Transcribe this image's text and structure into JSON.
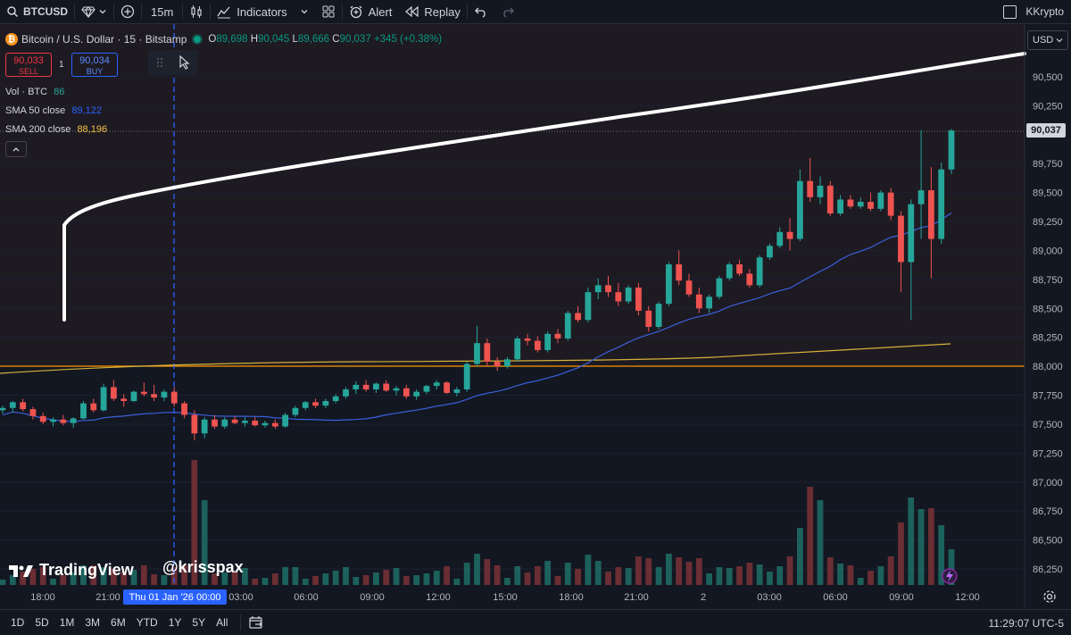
{
  "toolbar": {
    "symbol": "BTCUSD",
    "interval": "15m",
    "indicators_label": "Indicators",
    "alert_label": "Alert",
    "replay_label": "Replay",
    "user": "KKrypto"
  },
  "legend": {
    "title": "Bitcoin / U.S. Dollar · 15 · Bitstamp",
    "o_label": "O",
    "o": "89,698",
    "h_label": "H",
    "h": "90,045",
    "l_label": "L",
    "l": "89,666",
    "c_label": "C",
    "c": "90,037",
    "change": "+345 (+0.38%)"
  },
  "trade": {
    "sell_price": "90,033",
    "sell_label": "SELL",
    "spread": "1",
    "buy_price": "90,034",
    "buy_label": "BUY"
  },
  "studies": {
    "vol_label": "Vol · BTC",
    "vol_value": "86",
    "sma50_label": "SMA 50 close",
    "sma50_value": "89,122",
    "sma200_label": "SMA 200 close",
    "sma200_value": "88,196"
  },
  "price_axis": {
    "currency": "USD",
    "current_price": "90,037",
    "ticks": [
      "90,500",
      "90,250",
      "90,037",
      "89,750",
      "89,500",
      "89,250",
      "89,000",
      "88,750",
      "88,500",
      "88,250",
      "88,000",
      "87,750",
      "87,500",
      "87,250",
      "87,000",
      "86,750",
      "86,500",
      "86,250"
    ]
  },
  "time_axis": {
    "highlighted": "Thu 01 Jan '26   00:00",
    "labels": [
      "18:00",
      "21:00",
      "03:00",
      "06:00",
      "09:00",
      "12:00",
      "15:00",
      "18:00",
      "21:00",
      "2",
      "03:00",
      "06:00",
      "09:00",
      "12:00"
    ]
  },
  "branding": {
    "logo_text": "TradingView",
    "watermark": "@krisspax"
  },
  "bottom": {
    "ranges": [
      "1D",
      "5D",
      "1M",
      "3M",
      "6M",
      "YTD",
      "1Y",
      "5Y",
      "All"
    ],
    "clock": "11:29:07 UTC-5"
  },
  "colors": {
    "up": "#26a69a",
    "down": "#ef5350",
    "sma50": "#2962ff",
    "sma200": "#f5c242",
    "hline": "#ff9800",
    "background": "#131722"
  },
  "chart_data": {
    "type": "candlestick",
    "interval": "15m",
    "ylim": [
      86150,
      90700
    ],
    "horizontal_line": 88000,
    "candles": [
      [
        87620,
        87660,
        87590,
        87640
      ],
      [
        87640,
        87700,
        87600,
        87690
      ],
      [
        87690,
        87720,
        87610,
        87630
      ],
      [
        87630,
        87650,
        87540,
        87570
      ],
      [
        87570,
        87600,
        87500,
        87520
      ],
      [
        87520,
        87560,
        87480,
        87540
      ],
      [
        87540,
        87580,
        87490,
        87510
      ],
      [
        87510,
        87560,
        87470,
        87550
      ],
      [
        87550,
        87700,
        87540,
        87680
      ],
      [
        87680,
        87720,
        87600,
        87620
      ],
      [
        87620,
        87850,
        87610,
        87820
      ],
      [
        87820,
        87880,
        87700,
        87720
      ],
      [
        87720,
        87760,
        87650,
        87700
      ],
      [
        87700,
        87790,
        87690,
        87780
      ],
      [
        87780,
        87860,
        87740,
        87760
      ],
      [
        87760,
        87840,
        87700,
        87730
      ],
      [
        87730,
        87800,
        87700,
        87780
      ],
      [
        87780,
        87820,
        87650,
        87680
      ],
      [
        87680,
        87700,
        87550,
        87580
      ],
      [
        87580,
        87620,
        87360,
        87420
      ],
      [
        87420,
        87560,
        87380,
        87540
      ],
      [
        87540,
        87580,
        87460,
        87480
      ],
      [
        87480,
        87560,
        87460,
        87540
      ],
      [
        87540,
        87570,
        87500,
        87510
      ],
      [
        87510,
        87560,
        87480,
        87530
      ],
      [
        87530,
        87560,
        87480,
        87490
      ],
      [
        87490,
        87530,
        87470,
        87510
      ],
      [
        87510,
        87540,
        87460,
        87480
      ],
      [
        87480,
        87600,
        87470,
        87580
      ],
      [
        87580,
        87660,
        87560,
        87640
      ],
      [
        87640,
        87700,
        87620,
        87690
      ],
      [
        87690,
        87720,
        87640,
        87660
      ],
      [
        87660,
        87720,
        87640,
        87700
      ],
      [
        87700,
        87760,
        87680,
        87740
      ],
      [
        87740,
        87820,
        87720,
        87800
      ],
      [
        87800,
        87870,
        87760,
        87840
      ],
      [
        87840,
        87880,
        87780,
        87800
      ],
      [
        87800,
        87860,
        87770,
        87850
      ],
      [
        87850,
        87880,
        87780,
        87790
      ],
      [
        87790,
        87830,
        87750,
        87810
      ],
      [
        87810,
        87840,
        87720,
        87740
      ],
      [
        87740,
        87800,
        87710,
        87780
      ],
      [
        87780,
        87840,
        87760,
        87830
      ],
      [
        87830,
        87880,
        87800,
        87860
      ],
      [
        87860,
        87870,
        87760,
        87770
      ],
      [
        87770,
        87820,
        87740,
        87800
      ],
      [
        87800,
        88040,
        87780,
        88020
      ],
      [
        88020,
        88350,
        88000,
        88200
      ],
      [
        88200,
        88240,
        88000,
        88040
      ],
      [
        88040,
        88080,
        87960,
        88000
      ],
      [
        88000,
        88080,
        87980,
        88060
      ],
      [
        88060,
        88260,
        88040,
        88240
      ],
      [
        88240,
        88280,
        88180,
        88220
      ],
      [
        88220,
        88260,
        88120,
        88140
      ],
      [
        88140,
        88300,
        88120,
        88280
      ],
      [
        88280,
        88320,
        88200,
        88240
      ],
      [
        88240,
        88480,
        88220,
        88460
      ],
      [
        88460,
        88520,
        88380,
        88400
      ],
      [
        88400,
        88680,
        88380,
        88640
      ],
      [
        88640,
        88760,
        88580,
        88700
      ],
      [
        88700,
        88780,
        88600,
        88640
      ],
      [
        88640,
        88720,
        88520,
        88560
      ],
      [
        88560,
        88700,
        88540,
        88680
      ],
      [
        88680,
        88720,
        88440,
        88480
      ],
      [
        88480,
        88520,
        88300,
        88340
      ],
      [
        88340,
        88560,
        88320,
        88540
      ],
      [
        88540,
        88900,
        88520,
        88880
      ],
      [
        88880,
        89000,
        88700,
        88740
      ],
      [
        88740,
        88800,
        88600,
        88620
      ],
      [
        88620,
        88680,
        88460,
        88500
      ],
      [
        88500,
        88620,
        88460,
        88600
      ],
      [
        88600,
        88780,
        88580,
        88760
      ],
      [
        88760,
        88900,
        88740,
        88880
      ],
      [
        88880,
        88920,
        88780,
        88800
      ],
      [
        88800,
        88840,
        88680,
        88700
      ],
      [
        88700,
        88960,
        88680,
        88940
      ],
      [
        88940,
        89060,
        88920,
        89040
      ],
      [
        89040,
        89200,
        89020,
        89160
      ],
      [
        89160,
        89280,
        89000,
        89100
      ],
      [
        89100,
        89700,
        89080,
        89600
      ],
      [
        89600,
        89800,
        89420,
        89460
      ],
      [
        89460,
        89640,
        89400,
        89560
      ],
      [
        89560,
        89600,
        89300,
        89320
      ],
      [
        89320,
        89480,
        89300,
        89440
      ],
      [
        89440,
        89480,
        89360,
        89380
      ],
      [
        89380,
        89460,
        89360,
        89420
      ],
      [
        89420,
        89500,
        89340,
        89360
      ],
      [
        89360,
        89520,
        89340,
        89500
      ],
      [
        89500,
        89540,
        89260,
        89300
      ],
      [
        89300,
        89340,
        88640,
        88900
      ],
      [
        88900,
        89440,
        88400,
        89400
      ],
      [
        89400,
        90040,
        89100,
        89520
      ],
      [
        89520,
        89720,
        88760,
        89100
      ],
      [
        89100,
        89760,
        89060,
        89700
      ],
      [
        89700,
        90050,
        89660,
        90037
      ]
    ],
    "series": [
      {
        "name": "SMA 50 close",
        "last": 89122
      },
      {
        "name": "SMA 200 close",
        "last": 88196
      }
    ]
  }
}
